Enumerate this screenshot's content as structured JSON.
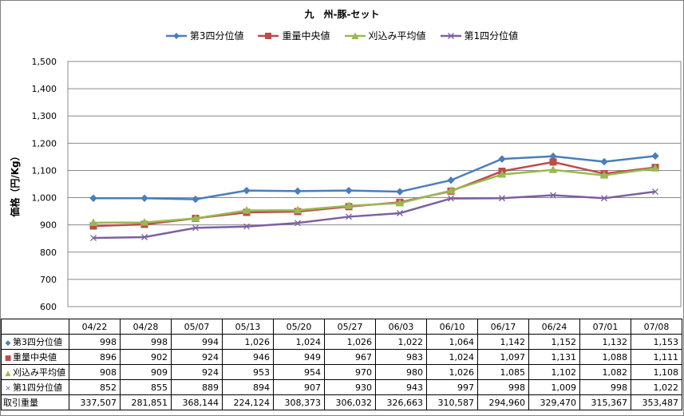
{
  "chart_data": {
    "type": "line",
    "title": "九　州-豚-セット",
    "ylabel": "価格（円/Kg）",
    "xlabel": "",
    "ylim": [
      600,
      1500
    ],
    "ytick_step": 100,
    "grid": true,
    "legend_position": "top",
    "categories": [
      "04/22",
      "04/28",
      "05/07",
      "05/13",
      "05/20",
      "05/27",
      "06/03",
      "06/10",
      "06/17",
      "06/24",
      "07/01",
      "07/08"
    ],
    "series": [
      {
        "name": "第3四分位値",
        "color": "#4a7ebb",
        "marker": "diamond",
        "values": [
          998,
          998,
          994,
          1026,
          1024,
          1026,
          1022,
          1064,
          1142,
          1152,
          1132,
          1153
        ]
      },
      {
        "name": "重量中央値",
        "color": "#be4b48",
        "marker": "square",
        "values": [
          896,
          902,
          924,
          946,
          949,
          967,
          983,
          1024,
          1097,
          1131,
          1088,
          1111
        ]
      },
      {
        "name": "刈込み平均値",
        "color": "#98b954",
        "marker": "triangle",
        "values": [
          908,
          909,
          924,
          953,
          954,
          970,
          980,
          1026,
          1085,
          1102,
          1082,
          1108
        ]
      },
      {
        "name": "第1四分位値",
        "color": "#7d60a0",
        "marker": "x",
        "values": [
          852,
          855,
          889,
          894,
          907,
          930,
          943,
          997,
          998,
          1009,
          998,
          1022
        ]
      }
    ],
    "table": {
      "rows": [
        {
          "label": "第3四分位値",
          "marker": "diamond",
          "color": "#4a7ebb",
          "cells": [
            "998",
            "998",
            "994",
            "1,026",
            "1,024",
            "1,026",
            "1,022",
            "1,064",
            "1,142",
            "1,152",
            "1,132",
            "1,153"
          ]
        },
        {
          "label": "重量中央値",
          "marker": "square",
          "color": "#be4b48",
          "cells": [
            "896",
            "902",
            "924",
            "946",
            "949",
            "967",
            "983",
            "1,024",
            "1,097",
            "1,131",
            "1,088",
            "1,111"
          ]
        },
        {
          "label": "刈込み平均値",
          "marker": "triangle",
          "color": "#98b954",
          "cells": [
            "908",
            "909",
            "924",
            "953",
            "954",
            "970",
            "980",
            "1,026",
            "1,085",
            "1,102",
            "1,082",
            "1,108"
          ]
        },
        {
          "label": "第1四分位値",
          "marker": "x",
          "color": "#7d60a0",
          "cells": [
            "852",
            "855",
            "889",
            "894",
            "907",
            "930",
            "943",
            "997",
            "998",
            "1,009",
            "998",
            "1,022"
          ]
        },
        {
          "label": "取引重量",
          "marker": "",
          "color": "",
          "cells": [
            "337,507",
            "281,851",
            "368,144",
            "224,124",
            "308,373",
            "306,032",
            "326,663",
            "310,587",
            "294,960",
            "329,470",
            "315,367",
            "353,487"
          ]
        }
      ]
    }
  }
}
